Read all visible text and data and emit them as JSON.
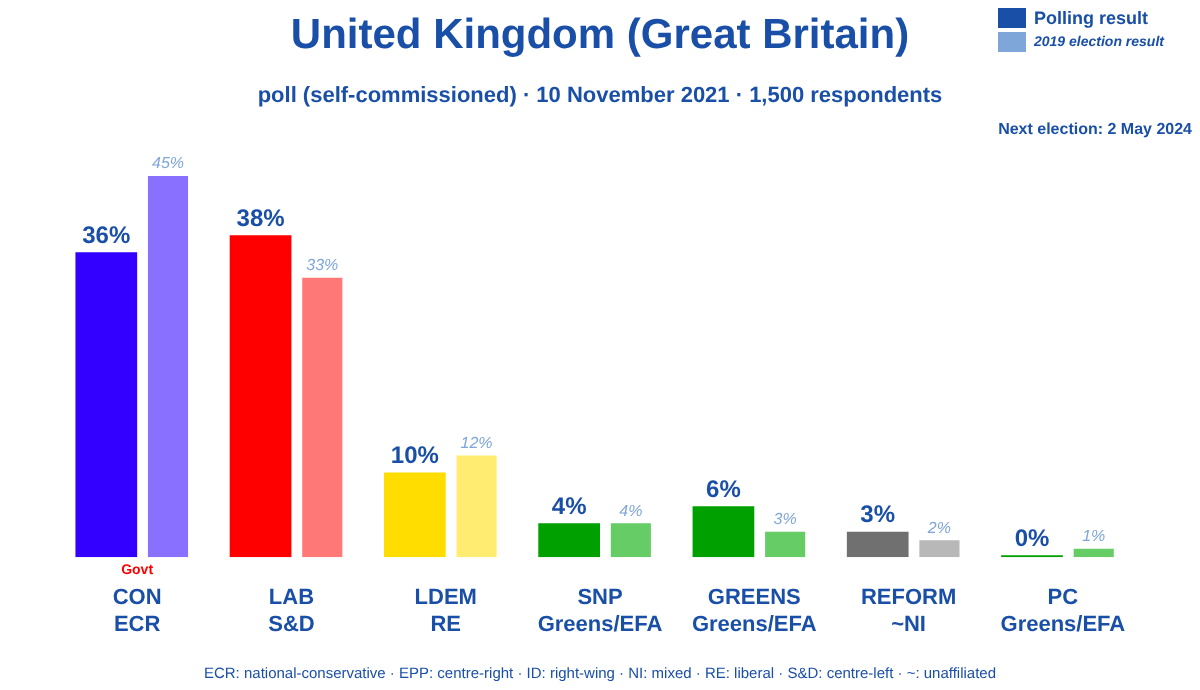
{
  "chart_data": {
    "type": "bar",
    "title": "United Kingdom (Great Britain)",
    "subtitle": "poll (self-commissioned) · 10 November 2021 · 1,500 respondents",
    "categories": [
      "CON\nECR",
      "LAB\nS&D",
      "LDEM\nRE",
      "SNP\nGreens/EFA",
      "GREENS\nGreens/EFA",
      "REFORM\n~NI",
      "PC\nGreens/EFA"
    ],
    "series": [
      {
        "colors": [
          "#3300ff",
          "#ff0000",
          "#ffdd00",
          "#00a000",
          "#00a000",
          "#707070",
          "#00a000"
        ],
        "values": [
          36,
          38,
          10,
          4,
          6,
          3,
          0
        ],
        "value_labels": [
          "36%",
          "38%",
          "10%",
          "4%",
          "6%",
          "3%",
          "0%"
        ]
      },
      {
        "colors": [
          "#8a70ff",
          "#ff7878",
          "#ffec70",
          "#66cc66",
          "#66cc66",
          "#b8b8b8",
          "#66cc66"
        ],
        "values": [
          45,
          33,
          12,
          4,
          3,
          2,
          1
        ],
        "value_labels": [
          "45%",
          "33%",
          "12%",
          "4%",
          "3%",
          "2%",
          "1%"
        ]
      }
    ],
    "grid": false,
    "annotations": [
      "Govt",
      "Polling result",
      "2019 election result",
      "Next election: 2 May 2024",
      "ECR: national-conservative · EPP: centre-right · ID: right-wing · NI: mixed · RE: liberal · S&D: centre-left · ~: unaffiliated"
    ]
  }
}
